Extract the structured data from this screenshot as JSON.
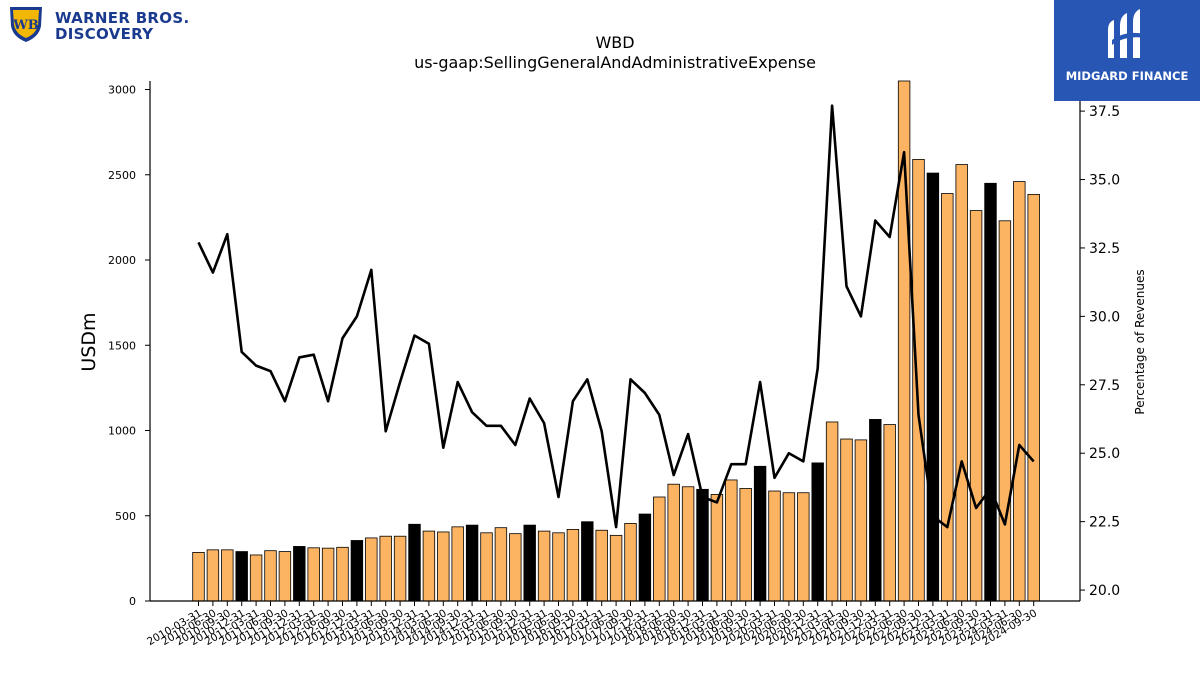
{
  "branding": {
    "company_logo_text": "WARNER BROS. DISCOVERY",
    "company_line1": "WARNER BROS.",
    "company_line2": "DISCOVERY",
    "publisher": "MIDGARD FINANCE"
  },
  "colors": {
    "bar_quarter": "#fdb462",
    "bar_year_end": "#000000",
    "line": "#000000",
    "brand_blue": "#2856b4",
    "wb_blue": "#1a3a8f",
    "wb_gold": "#f2b705"
  },
  "chart_data": {
    "type": "bar",
    "title": "WBD",
    "subtitle": "us-gaap:SellingGeneralAndAdministrativeExpense",
    "xlabel": "",
    "ylabel": "USDm",
    "y2label": "Percentage of Revenues",
    "ylim": [
      0,
      3050
    ],
    "y2lim": [
      19.6,
      38.6
    ],
    "yticks": [
      "0",
      "500",
      "1000",
      "1500",
      "2000",
      "2500",
      "3000"
    ],
    "y2ticks": [
      "20.0",
      "22.5",
      "25.0",
      "27.5",
      "30.0",
      "32.5",
      "35.0",
      "37.5"
    ],
    "categories": [
      "2010-03-31",
      "2010-06-30",
      "2010-09-30",
      "2010-12-31",
      "2011-03-31",
      "2011-06-30",
      "2011-09-30",
      "2011-12-31",
      "2012-03-31",
      "2012-06-30",
      "2012-09-30",
      "2012-12-31",
      "2013-03-31",
      "2013-06-30",
      "2013-09-30",
      "2013-12-31",
      "2014-03-31",
      "2014-06-30",
      "2014-09-30",
      "2014-12-31",
      "2015-03-31",
      "2015-06-30",
      "2015-09-30",
      "2015-12-31",
      "2016-03-31",
      "2016-06-30",
      "2016-09-30",
      "2016-12-31",
      "2017-03-31",
      "2017-06-30",
      "2017-09-30",
      "2017-12-31",
      "2018-03-31",
      "2018-06-30",
      "2018-09-30",
      "2018-12-31",
      "2019-03-31",
      "2019-06-30",
      "2019-09-30",
      "2019-12-31",
      "2020-03-31",
      "2020-06-30",
      "2020-09-30",
      "2020-12-31",
      "2021-03-31",
      "2021-06-30",
      "2021-09-30",
      "2021-12-31",
      "2022-03-31",
      "2022-06-30",
      "2022-09-30",
      "2022-12-31",
      "2023-03-31",
      "2023-06-30",
      "2023-09-30",
      "2023-12-31",
      "2024-03-31",
      "2024-06-30",
      "2024-09-30"
    ],
    "series": [
      {
        "type": "bar",
        "axis": "left",
        "values": [
          285,
          300,
          300,
          290,
          270,
          295,
          290,
          320,
          312,
          310,
          315,
          355,
          370,
          380,
          380,
          450,
          410,
          405,
          435,
          445,
          400,
          430,
          395,
          445,
          410,
          400,
          420,
          465,
          415,
          385,
          455,
          510,
          610,
          685,
          670,
          655,
          625,
          710,
          660,
          790,
          645,
          635,
          635,
          810,
          1050,
          950,
          945,
          1065,
          1035,
          3050,
          2590,
          2510,
          2390,
          2560,
          2290,
          2450,
          2230,
          2460,
          2385
        ]
      },
      {
        "type": "line",
        "axis": "right",
        "values": [
          32.7,
          31.6,
          33.0,
          28.7,
          28.2,
          28.0,
          26.9,
          28.5,
          28.6,
          26.9,
          29.2,
          30.0,
          31.7,
          25.8,
          27.6,
          29.3,
          29.0,
          25.2,
          27.6,
          26.5,
          26.0,
          26.0,
          25.3,
          27.0,
          26.1,
          23.4,
          26.9,
          27.7,
          25.8,
          22.3,
          27.7,
          27.2,
          26.4,
          24.2,
          25.7,
          23.4,
          23.2,
          24.6,
          24.6,
          27.6,
          24.1,
          25.0,
          24.7,
          28.1,
          37.7,
          31.1,
          30.0,
          33.5,
          32.9,
          36.0,
          26.4,
          22.7,
          22.3,
          24.7,
          23.0,
          23.7,
          22.4,
          25.3,
          24.7
        ]
      }
    ],
    "year_end_highlight": "bars for *-12-31 are drawn black",
    "grid": false,
    "legend": "none"
  }
}
